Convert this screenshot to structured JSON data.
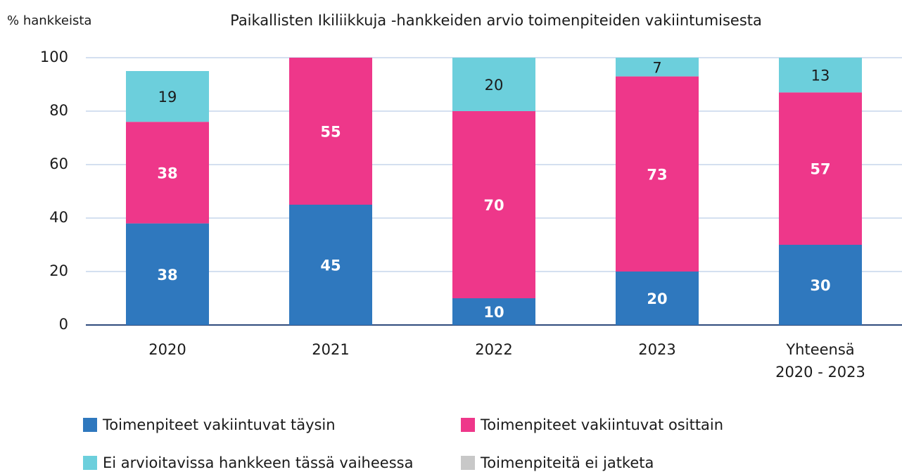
{
  "chart_data": {
    "type": "stacked_bar",
    "title": "Paikallisten Ikiliikkuja -hankkeiden arvio toimenpiteiden vakiintumisesta",
    "ylabel": "% hankkeista",
    "categories": [
      "2020",
      "2021",
      "2022",
      "2023",
      "Yhteensä\n2020 - 2023"
    ],
    "series": [
      {
        "name": "Toimenpiteet vakiintuvat täysin",
        "color": "#2f78be",
        "values": [
          38,
          45,
          10,
          20,
          30
        ]
      },
      {
        "name": "Toimenpiteet vakiintuvat osittain",
        "color": "#ee378a",
        "values": [
          38,
          55,
          70,
          73,
          57
        ]
      },
      {
        "name": "Ei arvioitavissa hankkeen tässä vaiheessa",
        "color": "#6ccfdc",
        "values": [
          19,
          null,
          20,
          7,
          13
        ]
      },
      {
        "name": "Toimenpiteitä ei jatketa",
        "color": "#c8c8c8",
        "values": [
          null,
          null,
          null,
          null,
          null
        ]
      }
    ],
    "ylim": [
      0,
      100
    ],
    "yticks": [
      0,
      20,
      40,
      60,
      80,
      100
    ],
    "grid": true
  }
}
